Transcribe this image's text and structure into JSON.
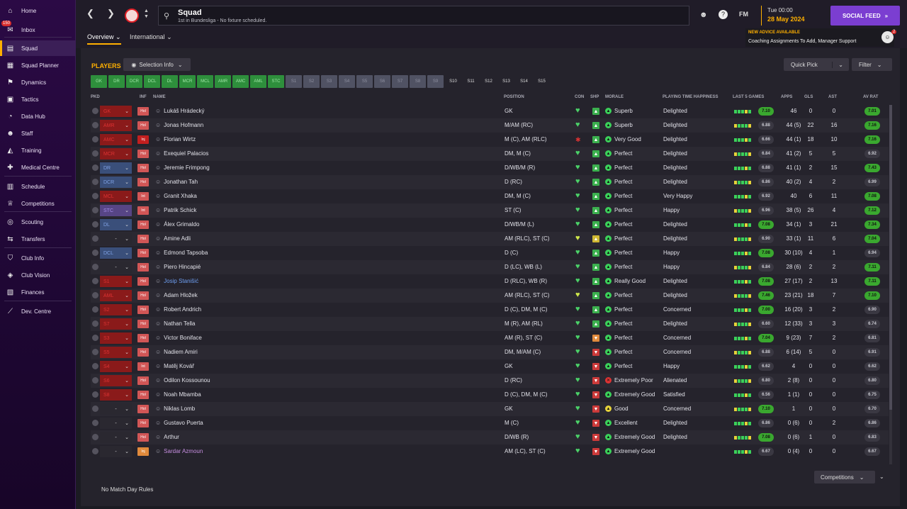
{
  "sidebar": {
    "items": [
      {
        "label": "Home",
        "icon": "home-icon"
      },
      {
        "label": "Inbox",
        "icon": "inbox-icon",
        "badge": "150"
      },
      {
        "label": "Squad",
        "icon": "squad-icon",
        "active": true
      },
      {
        "label": "Squad Planner",
        "icon": "planner-icon"
      },
      {
        "label": "Dynamics",
        "icon": "dynamics-icon"
      },
      {
        "label": "Tactics",
        "icon": "tactics-icon"
      },
      {
        "label": "Data Hub",
        "icon": "data-hub-icon"
      },
      {
        "label": "Staff",
        "icon": "staff-icon"
      },
      {
        "label": "Training",
        "icon": "training-icon"
      },
      {
        "label": "Medical Centre",
        "icon": "medical-icon"
      },
      {
        "label": "Schedule",
        "icon": "schedule-icon"
      },
      {
        "label": "Competitions",
        "icon": "trophy-icon"
      },
      {
        "label": "Scouting",
        "icon": "scouting-icon"
      },
      {
        "label": "Transfers",
        "icon": "transfers-icon"
      },
      {
        "label": "Club Info",
        "icon": "club-info-icon"
      },
      {
        "label": "Club Vision",
        "icon": "club-vision-icon"
      },
      {
        "label": "Finances",
        "icon": "finances-icon"
      },
      {
        "label": "Dev. Centre",
        "icon": "dev-centre-icon"
      }
    ]
  },
  "header": {
    "title": "Squad",
    "subtitle": "1st in Bundesliga - No fixture scheduled.",
    "fm_label": "FM",
    "date_day": "Tue 00:00",
    "date": "28 May 2024",
    "social_feed": "SOCIAL FEED",
    "advice_title": "NEW ADVICE AVAILABLE",
    "advice_text": "Coaching Assignments To Add, Manager Support",
    "advice_count": "2"
  },
  "tabs": [
    {
      "label": "Overview"
    },
    {
      "label": "International"
    }
  ],
  "toolbar": {
    "players_label": "PLAYERS",
    "selection_info": "Selection Info",
    "quick_pick": "Quick Pick",
    "filter": "Filter",
    "competitions": "Competitions",
    "rules": "No Match Day Rules"
  },
  "position_filters": [
    {
      "label": "GK",
      "state": "g"
    },
    {
      "label": "DR",
      "state": "g"
    },
    {
      "label": "DCR",
      "state": "g"
    },
    {
      "label": "DCL",
      "state": "g"
    },
    {
      "label": "DL",
      "state": "g"
    },
    {
      "label": "MCR",
      "state": "g"
    },
    {
      "label": "MCL",
      "state": "g"
    },
    {
      "label": "AMR",
      "state": "g"
    },
    {
      "label": "AMC",
      "state": "g"
    },
    {
      "label": "AML",
      "state": "g"
    },
    {
      "label": "STC",
      "state": "g"
    },
    {
      "label": "S1",
      "state": "x"
    },
    {
      "label": "S2",
      "state": "x"
    },
    {
      "label": "S3",
      "state": "x"
    },
    {
      "label": "S4",
      "state": "x"
    },
    {
      "label": "S5",
      "state": "x"
    },
    {
      "label": "S6",
      "state": "x"
    },
    {
      "label": "S7",
      "state": "x"
    },
    {
      "label": "S8",
      "state": "x"
    },
    {
      "label": "S9",
      "state": "x"
    },
    {
      "label": "S10",
      "state": "s"
    },
    {
      "label": "S11",
      "state": "s"
    },
    {
      "label": "S12",
      "state": "s"
    },
    {
      "label": "S13",
      "state": "s"
    },
    {
      "label": "S14",
      "state": "s"
    },
    {
      "label": "S15",
      "state": "s"
    }
  ],
  "columns": {
    "pkd": "PKD",
    "inf": "INF",
    "name": "NAME",
    "position": "POSITION",
    "con": "CON",
    "shp": "SHP",
    "morale": "MORALE",
    "happiness": "PLAYING TIME HAPPINESS",
    "last5": "LAST 5 GAMES",
    "apps": "APPS",
    "gls": "GLS",
    "ast": "AST",
    "avrat": "AV RAT"
  },
  "players": [
    {
      "sel": "GK",
      "selc": "red",
      "inf": "Hol",
      "infc": "hol",
      "name": "Lukáš Hrádecký",
      "pos": "GK",
      "con": "g",
      "shp": "g",
      "mor": "g",
      "morale": "Superb",
      "hap": "Delighted",
      "last": "7.10",
      "lastc": "hl",
      "apps": "46",
      "gls": "0",
      "ast": "0",
      "av": "7.01",
      "avc": "hl"
    },
    {
      "sel": "AMR",
      "selc": "red",
      "inf": "Hol",
      "infc": "hol",
      "name": "Jonas Hofmann",
      "pos": "M/AM (RC)",
      "con": "g",
      "shp": "g",
      "mor": "g",
      "morale": "Superb",
      "hap": "Delighted",
      "last": "6.88",
      "lastc": "dk",
      "apps": "44 (5)",
      "gls": "22",
      "ast": "16",
      "av": "7.16",
      "avc": "hl"
    },
    {
      "sel": "AMC",
      "selc": "red",
      "inf": "Inj",
      "infc": "inj",
      "name": "Florian Wirtz",
      "pos": "M (C), AM (RLC)",
      "con": "r",
      "shp": "g",
      "mor": "g",
      "morale": "Very Good",
      "hap": "Delighted",
      "last": "6.66",
      "lastc": "dk",
      "apps": "44 (1)",
      "gls": "18",
      "ast": "10",
      "av": "7.16",
      "avc": "hl"
    },
    {
      "sel": "MCR",
      "selc": "red",
      "inf": "Hol",
      "infc": "hol",
      "name": "Exequiel Palacios",
      "pos": "DM, M (C)",
      "con": "g",
      "shp": "g",
      "mor": "g",
      "morale": "Perfect",
      "hap": "Delighted",
      "last": "6.84",
      "lastc": "dk",
      "apps": "41 (2)",
      "gls": "5",
      "ast": "5",
      "av": "6.92",
      "avc": "dk"
    },
    {
      "sel": "DR",
      "selc": "blue",
      "inf": "Hol",
      "infc": "hol",
      "name": "Jeremie Frimpong",
      "pos": "D/WB/M (R)",
      "con": "g",
      "shp": "g",
      "mor": "g",
      "morale": "Perfect",
      "hap": "Delighted",
      "last": "6.88",
      "lastc": "dk",
      "apps": "41 (1)",
      "gls": "2",
      "ast": "15",
      "av": "7.43",
      "avc": "hl"
    },
    {
      "sel": "DCR",
      "selc": "blue",
      "inf": "Hol",
      "infc": "hol",
      "name": "Jonathan Tah",
      "pos": "D (RC)",
      "con": "g",
      "shp": "g",
      "mor": "g",
      "morale": "Perfect",
      "hap": "Delighted",
      "last": "6.86",
      "lastc": "dk",
      "apps": "40 (2)",
      "gls": "4",
      "ast": "2",
      "av": "6.99",
      "avc": "dk"
    },
    {
      "sel": "MCL",
      "selc": "red",
      "inf": "Int",
      "infc": "int",
      "name": "Granit Xhaka",
      "pos": "DM, M (C)",
      "con": "g",
      "shp": "g",
      "mor": "g",
      "morale": "Perfect",
      "hap": "Very Happy",
      "last": "6.92",
      "lastc": "dk",
      "apps": "40",
      "gls": "6",
      "ast": "11",
      "av": "7.08",
      "avc": "hl"
    },
    {
      "sel": "STC",
      "selc": "purple",
      "inf": "Int",
      "infc": "int",
      "name": "Patrik Schick",
      "pos": "ST (C)",
      "con": "g",
      "shp": "g",
      "mor": "g",
      "morale": "Perfect",
      "hap": "Happy",
      "last": "6.96",
      "lastc": "dk",
      "apps": "38 (5)",
      "gls": "26",
      "ast": "4",
      "av": "7.12",
      "avc": "hl"
    },
    {
      "sel": "DL",
      "selc": "blue",
      "inf": "Hol",
      "infc": "hol",
      "name": "Álex Grimaldo",
      "pos": "D/WB/M (L)",
      "con": "g",
      "shp": "g",
      "mor": "g",
      "morale": "Perfect",
      "hap": "Delighted",
      "last": "7.08",
      "lastc": "hl",
      "apps": "34 (1)",
      "gls": "3",
      "ast": "21",
      "av": "7.34",
      "avc": "hl"
    },
    {
      "sel": "-",
      "selc": "none",
      "inf": "Hol",
      "infc": "hol",
      "name": "Amine Adli",
      "pos": "AM (RLC), ST (C)",
      "con": "y",
      "shp": "y",
      "mor": "g",
      "morale": "Perfect",
      "hap": "Delighted",
      "last": "6.90",
      "lastc": "dk",
      "apps": "33 (1)",
      "gls": "11",
      "ast": "6",
      "av": "7.04",
      "avc": "hl"
    },
    {
      "sel": "DCL",
      "selc": "blue",
      "inf": "Hol",
      "infc": "hol",
      "name": "Edmond Tapsoba",
      "pos": "D (C)",
      "con": "g",
      "shp": "g",
      "mor": "g",
      "morale": "Perfect",
      "hap": "Happy",
      "last": "7.08",
      "lastc": "hl",
      "apps": "30 (10)",
      "gls": "4",
      "ast": "1",
      "av": "6.94",
      "avc": "dk"
    },
    {
      "sel": "-",
      "selc": "none",
      "inf": "Hol",
      "infc": "hol",
      "name": "Piero Hincapié",
      "pos": "D (LC), WB (L)",
      "con": "g",
      "shp": "g",
      "mor": "g",
      "morale": "Perfect",
      "hap": "Happy",
      "last": "6.84",
      "lastc": "dk",
      "apps": "28 (6)",
      "gls": "2",
      "ast": "2",
      "av": "7.11",
      "avc": "hl"
    },
    {
      "sel": "S1",
      "selc": "red",
      "inf": "Hol",
      "infc": "hol",
      "name": "Josip Stanišić",
      "namec": "blue",
      "pos": "D (RLC), WB (R)",
      "con": "g",
      "shp": "g",
      "mor": "g",
      "morale": "Really Good",
      "hap": "Delighted",
      "last": "7.08",
      "lastc": "hl",
      "apps": "27 (17)",
      "gls": "2",
      "ast": "13",
      "av": "7.11",
      "avc": "hl"
    },
    {
      "sel": "AML",
      "selc": "red",
      "inf": "Hol",
      "infc": "hol",
      "name": "Adam Hložek",
      "pos": "AM (RLC), ST (C)",
      "con": "y",
      "shp": "g",
      "mor": "g",
      "morale": "Perfect",
      "hap": "Delighted",
      "last": "7.46",
      "lastc": "hl",
      "apps": "23 (21)",
      "gls": "18",
      "ast": "7",
      "av": "7.10",
      "avc": "hl"
    },
    {
      "sel": "S2",
      "selc": "red",
      "inf": "Hol",
      "infc": "hol",
      "name": "Robert Andrich",
      "pos": "D (C), DM, M (C)",
      "con": "g",
      "shp": "g",
      "mor": "g",
      "morale": "Perfect",
      "hap": "Concerned",
      "last": "7.00",
      "lastc": "hl",
      "apps": "16 (20)",
      "gls": "3",
      "ast": "2",
      "av": "6.90",
      "avc": "dk"
    },
    {
      "sel": "S7",
      "selc": "red",
      "inf": "Hol",
      "infc": "hol",
      "name": "Nathan Tella",
      "pos": "M (R), AM (RL)",
      "con": "g",
      "shp": "g",
      "mor": "g",
      "morale": "Perfect",
      "hap": "Delighted",
      "last": "6.60",
      "lastc": "dk",
      "apps": "12 (33)",
      "gls": "3",
      "ast": "3",
      "av": "6.74",
      "avc": "dk"
    },
    {
      "sel": "S3",
      "selc": "red",
      "inf": "Hol",
      "infc": "hol",
      "name": "Victor Boniface",
      "pos": "AM (R), ST (C)",
      "con": "g",
      "shp": "o",
      "mor": "g",
      "morale": "Perfect",
      "hap": "Concerned",
      "last": "7.04",
      "lastc": "hl",
      "apps": "9 (23)",
      "gls": "7",
      "ast": "2",
      "av": "6.81",
      "avc": "dk"
    },
    {
      "sel": "S5",
      "selc": "red",
      "inf": "Hol",
      "infc": "hol",
      "name": "Nadiem Amiri",
      "pos": "DM, M/AM (C)",
      "con": "g",
      "shp": "r",
      "mor": "g",
      "morale": "Perfect",
      "hap": "Concerned",
      "last": "6.88",
      "lastc": "dk",
      "apps": "6 (14)",
      "gls": "5",
      "ast": "0",
      "av": "6.91",
      "avc": "dk"
    },
    {
      "sel": "S4",
      "selc": "red",
      "inf": "Int",
      "infc": "int",
      "name": "Matěj Kovář",
      "pos": "GK",
      "con": "g",
      "shp": "r",
      "mor": "g",
      "morale": "Perfect",
      "hap": "Happy",
      "last": "6.62",
      "lastc": "dk",
      "apps": "4",
      "gls": "0",
      "ast": "0",
      "av": "6.62",
      "avc": "dk"
    },
    {
      "sel": "S6",
      "selc": "red",
      "inf": "Hol",
      "infc": "hol",
      "name": "Odilon Kossounou",
      "pos": "D (RC)",
      "con": "g",
      "shp": "r",
      "mor": "r",
      "morale": "Extremely Poor",
      "hap": "Alienated",
      "last": "6.80",
      "lastc": "dk",
      "apps": "2 (8)",
      "gls": "0",
      "ast": "0",
      "av": "6.80",
      "avc": "dk"
    },
    {
      "sel": "S8",
      "selc": "red",
      "inf": "Hol",
      "infc": "hol",
      "name": "Noah Mbamba",
      "pos": "D (C), DM, M (C)",
      "con": "g",
      "shp": "r",
      "mor": "g",
      "morale": "Extremely Good",
      "hap": "Satisfied",
      "last": "6.56",
      "lastc": "dk",
      "apps": "1 (1)",
      "gls": "0",
      "ast": "0",
      "av": "6.75",
      "avc": "dk"
    },
    {
      "sel": "-",
      "selc": "none",
      "inf": "Hol",
      "infc": "hol",
      "name": "Niklas Lomb",
      "pos": "GK",
      "con": "g",
      "shp": "r",
      "mor": "y",
      "morale": "Good",
      "hap": "Concerned",
      "last": "7.10",
      "lastc": "hl",
      "apps": "1",
      "gls": "0",
      "ast": "0",
      "av": "6.70",
      "avc": "dk"
    },
    {
      "sel": "-",
      "selc": "none",
      "inf": "Hol",
      "infc": "hol",
      "name": "Gustavo Puerta",
      "pos": "M (C)",
      "con": "g",
      "shp": "r",
      "mor": "g",
      "morale": "Excellent",
      "hap": "Delighted",
      "last": "6.86",
      "lastc": "dk",
      "apps": "0 (6)",
      "gls": "0",
      "ast": "2",
      "av": "6.86",
      "avc": "dk"
    },
    {
      "sel": "-",
      "selc": "none",
      "inf": "Hol",
      "infc": "hol",
      "name": "Arthur",
      "pos": "D/WB (R)",
      "con": "g",
      "shp": "r",
      "mor": "g",
      "morale": "Extremely Good",
      "hap": "Delighted",
      "last": "7.08",
      "lastc": "hl",
      "apps": "0 (6)",
      "gls": "1",
      "ast": "0",
      "av": "6.83",
      "avc": "dk"
    },
    {
      "sel": "-",
      "selc": "none",
      "inf": "Inj",
      "infc": "inj2",
      "name": "Sardar Azmoun",
      "namec": "purple",
      "pos": "AM (LC), ST (C)",
      "con": "g",
      "shp": "r",
      "mor": "g",
      "morale": "Extremely Good",
      "hap": "",
      "last": "6.67",
      "lastc": "dk",
      "apps": "0 (4)",
      "gls": "0",
      "ast": "0",
      "av": "6.67",
      "avc": "dk"
    }
  ]
}
